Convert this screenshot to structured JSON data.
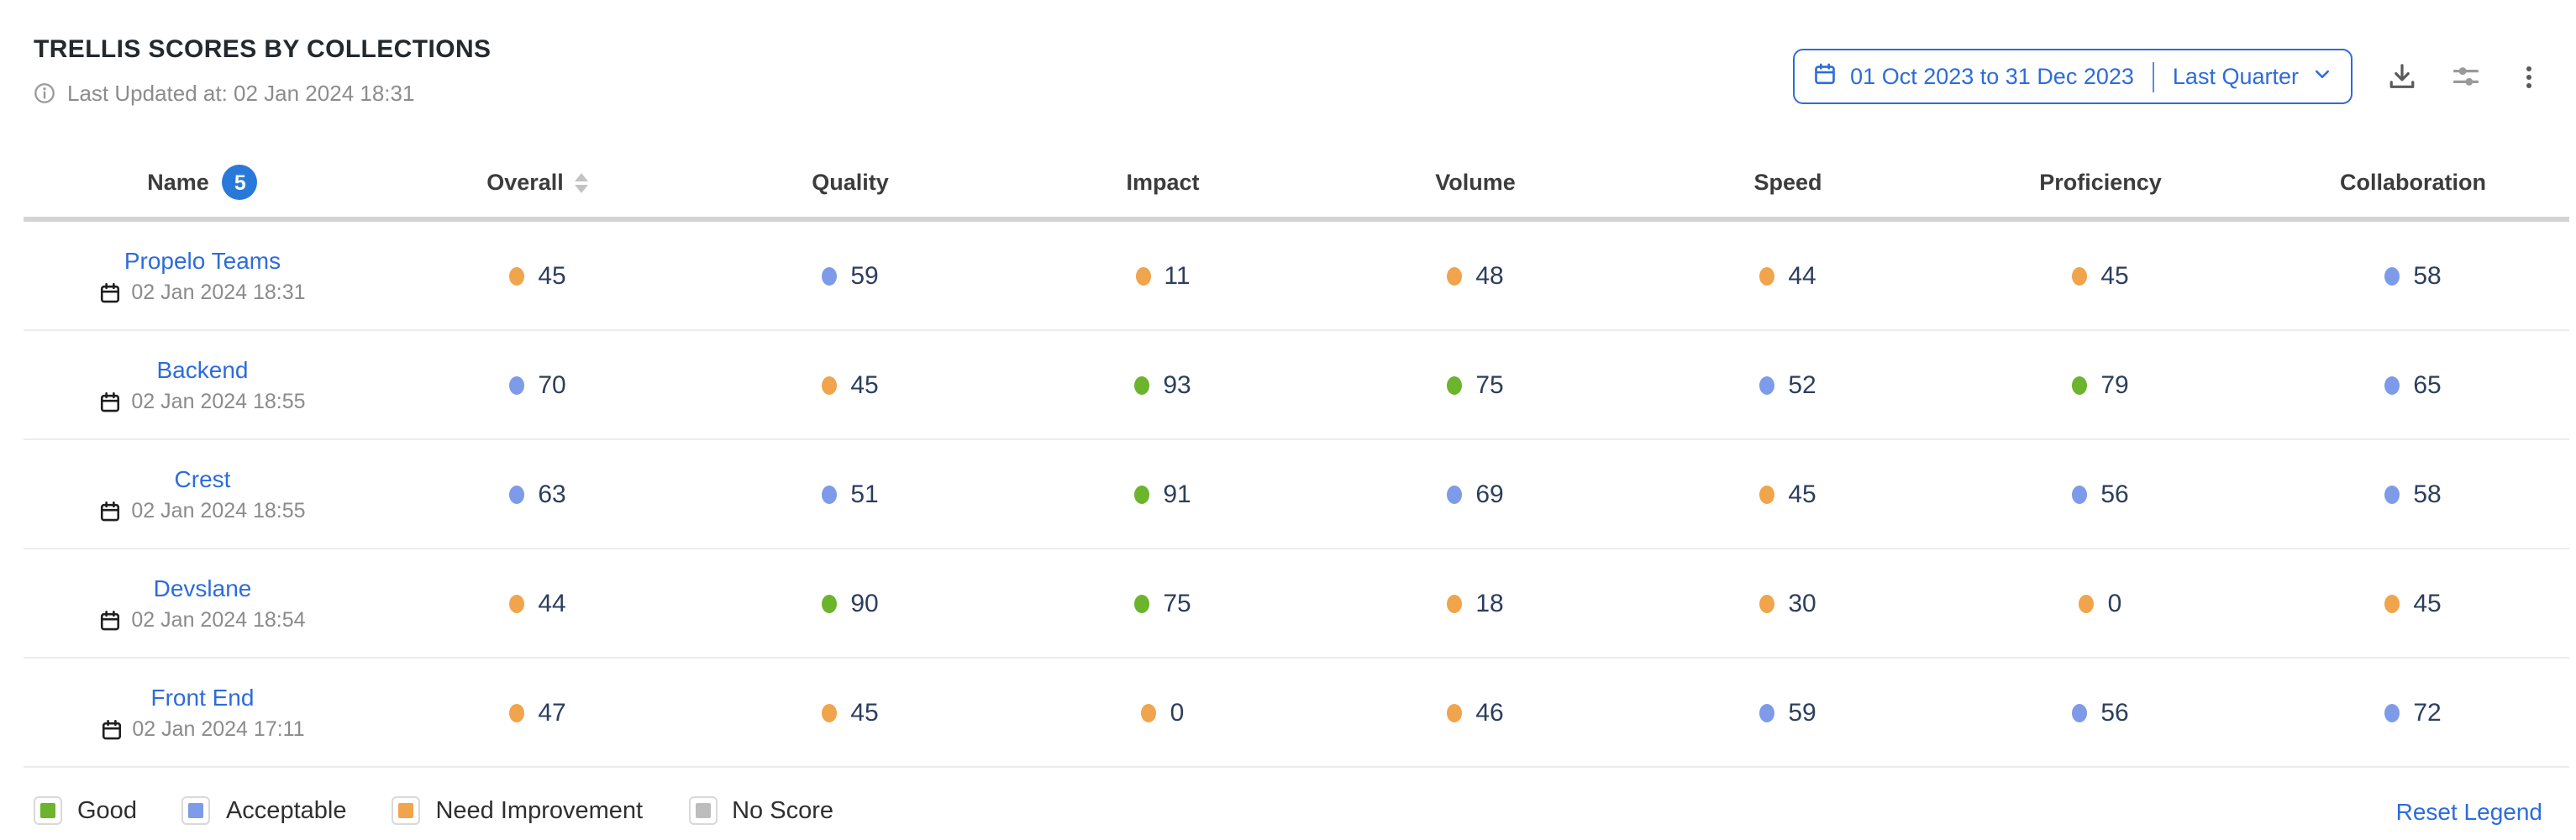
{
  "widget": {
    "title": "TRELLIS SCORES BY COLLECTIONS",
    "last_updated": "Last Updated at: 02 Jan 2024 18:31"
  },
  "toolbar": {
    "date_range": "01 Oct 2023 to 31 Dec 2023",
    "date_preset": "Last Quarter",
    "icons": [
      "calendar-icon",
      "chevron-down-icon",
      "download-icon",
      "sliders-icon",
      "kebab-menu-icon",
      "info-icon"
    ]
  },
  "table": {
    "columns": [
      "Name",
      "Overall",
      "Quality",
      "Impact",
      "Volume",
      "Speed",
      "Proficiency",
      "Collaboration"
    ],
    "name_badge_count": 5,
    "rows": [
      {
        "name": "Propelo Teams",
        "date": "02 Jan 2024 18:31",
        "scores": [
          {
            "v": 45,
            "c": "orange"
          },
          {
            "v": 59,
            "c": "blue"
          },
          {
            "v": 11,
            "c": "orange"
          },
          {
            "v": 48,
            "c": "orange"
          },
          {
            "v": 44,
            "c": "orange"
          },
          {
            "v": 45,
            "c": "orange"
          },
          {
            "v": 58,
            "c": "blue"
          }
        ]
      },
      {
        "name": "Backend",
        "date": "02 Jan 2024 18:55",
        "scores": [
          {
            "v": 70,
            "c": "blue"
          },
          {
            "v": 45,
            "c": "orange"
          },
          {
            "v": 93,
            "c": "green"
          },
          {
            "v": 75,
            "c": "green"
          },
          {
            "v": 52,
            "c": "blue"
          },
          {
            "v": 79,
            "c": "green"
          },
          {
            "v": 65,
            "c": "blue"
          }
        ]
      },
      {
        "name": "Crest",
        "date": "02 Jan 2024 18:55",
        "scores": [
          {
            "v": 63,
            "c": "blue"
          },
          {
            "v": 51,
            "c": "blue"
          },
          {
            "v": 91,
            "c": "green"
          },
          {
            "v": 69,
            "c": "blue"
          },
          {
            "v": 45,
            "c": "orange"
          },
          {
            "v": 56,
            "c": "blue"
          },
          {
            "v": 58,
            "c": "blue"
          }
        ]
      },
      {
        "name": "Devslane",
        "date": "02 Jan 2024 18:54",
        "scores": [
          {
            "v": 44,
            "c": "orange"
          },
          {
            "v": 90,
            "c": "green"
          },
          {
            "v": 75,
            "c": "green"
          },
          {
            "v": 18,
            "c": "orange"
          },
          {
            "v": 30,
            "c": "orange"
          },
          {
            "v": 0,
            "c": "orange"
          },
          {
            "v": 45,
            "c": "orange"
          }
        ]
      },
      {
        "name": "Front End",
        "date": "02 Jan 2024 17:11",
        "scores": [
          {
            "v": 47,
            "c": "orange"
          },
          {
            "v": 45,
            "c": "orange"
          },
          {
            "v": 0,
            "c": "orange"
          },
          {
            "v": 46,
            "c": "orange"
          },
          {
            "v": 59,
            "c": "blue"
          },
          {
            "v": 56,
            "c": "blue"
          },
          {
            "v": 72,
            "c": "blue"
          }
        ]
      }
    ]
  },
  "legend": {
    "items": [
      {
        "label": "Good",
        "key": "green"
      },
      {
        "label": "Acceptable",
        "key": "blue"
      },
      {
        "label": "Need Improvement",
        "key": "orange"
      },
      {
        "label": "No Score",
        "key": "gray"
      }
    ],
    "reset_label": "Reset Legend"
  },
  "colors": {
    "green": "#6BB42B",
    "blue": "#7D9BE8",
    "orange": "#F0A44C",
    "gray": "#BDBDBD",
    "accent_blue": "#2D6CDA"
  }
}
